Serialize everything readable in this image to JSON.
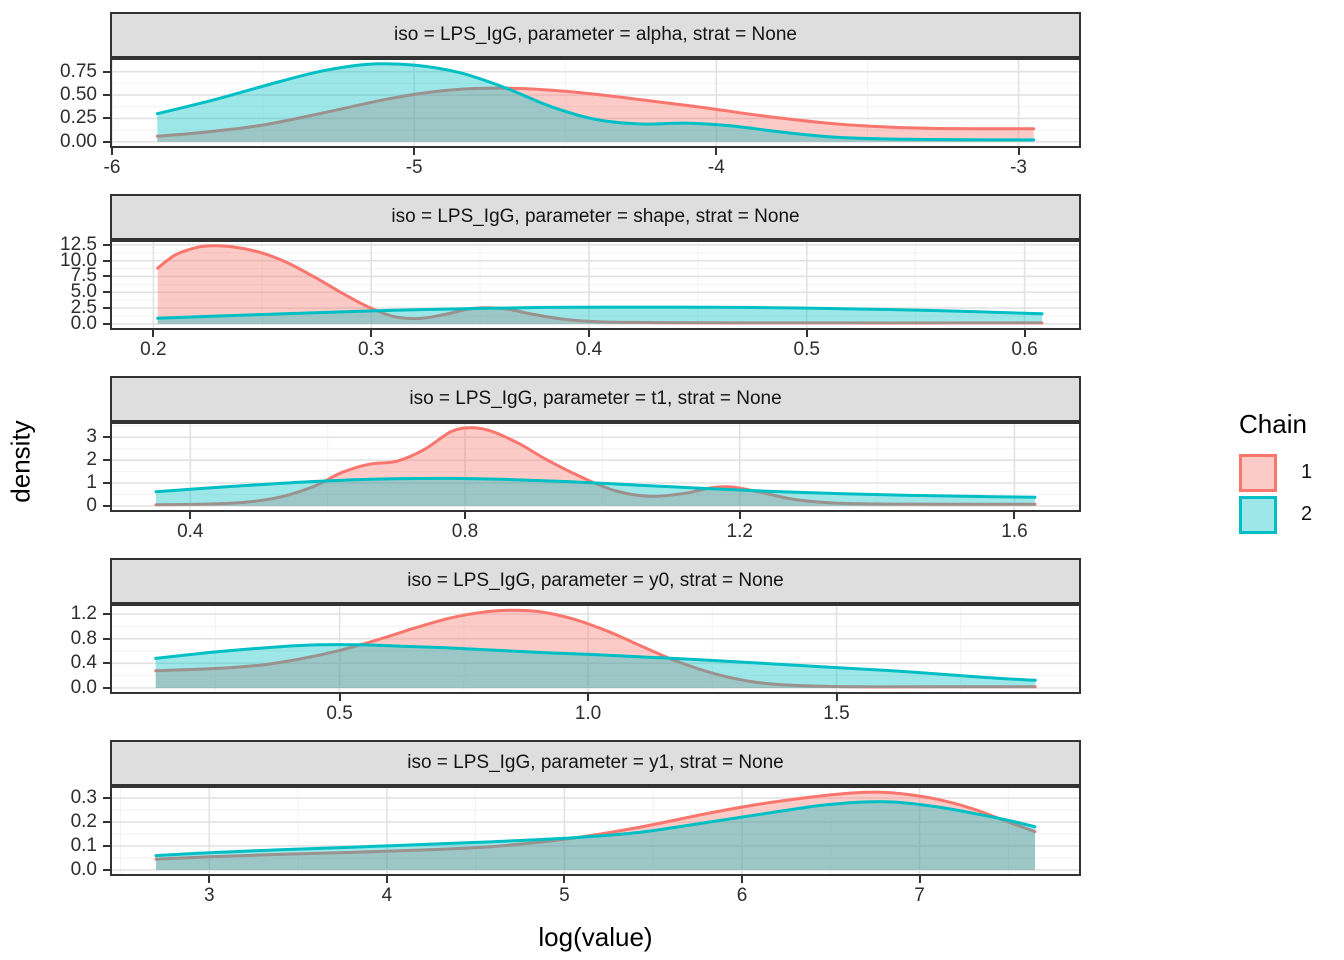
{
  "figure": {
    "ylabel": "density",
    "xlabel": "log(value)",
    "legend": {
      "title": "Chain",
      "entries": [
        {
          "label": "1",
          "color": "#F8766D"
        },
        {
          "label": "2",
          "color": "#00BFC4"
        }
      ]
    }
  },
  "style": {
    "strip_fill": "#DEDEDE",
    "panel_border": "#333333",
    "grid_major": "#E2E2E2",
    "grid_minor": "#F2F2F2",
    "chain1_color": "#F8766D",
    "chain2_color": "#00BFC4",
    "fill_opacity": 0.38
  },
  "chart_data": [
    {
      "type": "area",
      "param": "alpha",
      "title": "iso = LPS_IgG, parameter = alpha, strat = None",
      "xlim": [
        -6.0,
        -2.8
      ],
      "ylim": [
        -0.045,
        0.875
      ],
      "xticks": [
        -6,
        -5,
        -4,
        -3
      ],
      "xtick_labels": [
        "-6",
        "-5",
        "-4",
        "-3"
      ],
      "yticks": [
        0,
        0.25,
        0.5,
        0.75
      ],
      "ytick_labels": [
        "0.00",
        "0.25",
        "0.50",
        "0.75"
      ],
      "series": [
        {
          "name": "1",
          "color": "#F8766D",
          "x": [
            -5.85,
            -5.7,
            -5.5,
            -5.3,
            -5.1,
            -4.95,
            -4.8,
            -4.65,
            -4.5,
            -4.35,
            -4.2,
            -4.05,
            -3.9,
            -3.75,
            -3.6,
            -3.45,
            -3.3,
            -3.15,
            -2.95
          ],
          "y": [
            0.06,
            0.1,
            0.18,
            0.31,
            0.45,
            0.53,
            0.57,
            0.57,
            0.54,
            0.49,
            0.43,
            0.37,
            0.3,
            0.24,
            0.19,
            0.16,
            0.145,
            0.14,
            0.14
          ]
        },
        {
          "name": "2",
          "color": "#00BFC4",
          "x": [
            -5.85,
            -5.65,
            -5.45,
            -5.3,
            -5.15,
            -5.0,
            -4.85,
            -4.7,
            -4.55,
            -4.4,
            -4.25,
            -4.1,
            -3.95,
            -3.8,
            -3.65,
            -3.5,
            -3.3,
            -3.1,
            -2.95
          ],
          "y": [
            0.3,
            0.46,
            0.64,
            0.76,
            0.83,
            0.82,
            0.74,
            0.58,
            0.38,
            0.24,
            0.19,
            0.2,
            0.17,
            0.11,
            0.06,
            0.035,
            0.025,
            0.02,
            0.02
          ]
        }
      ]
    },
    {
      "type": "area",
      "param": "shape",
      "title": "iso = LPS_IgG, parameter = shape, strat = None",
      "xlim": [
        0.181,
        0.625
      ],
      "ylim": [
        -0.65,
        12.95
      ],
      "xticks": [
        0.2,
        0.3,
        0.4,
        0.5,
        0.6
      ],
      "xtick_labels": [
        "0.2",
        "0.3",
        "0.4",
        "0.5",
        "0.6"
      ],
      "yticks": [
        0,
        2.5,
        5,
        7.5,
        10,
        12.5
      ],
      "ytick_labels": [
        "0.0",
        "2.5",
        "5.0",
        "7.5",
        "10.0",
        "12.5"
      ],
      "series": [
        {
          "name": "1",
          "color": "#F8766D",
          "x": [
            0.202,
            0.21,
            0.22,
            0.228,
            0.238,
            0.25,
            0.262,
            0.274,
            0.286,
            0.298,
            0.31,
            0.322,
            0.334,
            0.344,
            0.352,
            0.362,
            0.374,
            0.388,
            0.404,
            0.43,
            0.47,
            0.52,
            0.57,
            0.608
          ],
          "y": [
            8.8,
            10.9,
            12.1,
            12.35,
            12.1,
            11.2,
            9.6,
            7.4,
            5.0,
            2.8,
            1.2,
            0.85,
            1.5,
            2.3,
            2.55,
            2.35,
            1.55,
            0.75,
            0.35,
            0.2,
            0.16,
            0.15,
            0.15,
            0.15
          ]
        },
        {
          "name": "2",
          "color": "#00BFC4",
          "x": [
            0.202,
            0.23,
            0.26,
            0.29,
            0.32,
            0.35,
            0.38,
            0.41,
            0.44,
            0.47,
            0.5,
            0.53,
            0.56,
            0.585,
            0.608
          ],
          "y": [
            0.9,
            1.25,
            1.6,
            1.95,
            2.25,
            2.45,
            2.6,
            2.65,
            2.65,
            2.6,
            2.5,
            2.32,
            2.1,
            1.85,
            1.6
          ]
        }
      ]
    },
    {
      "type": "area",
      "param": "t1",
      "title": "iso = LPS_IgG, parameter = t1, strat = None",
      "xlim": [
        0.286,
        1.694
      ],
      "ylim": [
        -0.18,
        3.58
      ],
      "xticks": [
        0.4,
        0.8,
        1.2,
        1.6
      ],
      "xtick_labels": [
        "0.4",
        "0.8",
        "1.2",
        "1.6"
      ],
      "yticks": [
        0,
        1,
        2,
        3
      ],
      "ytick_labels": [
        "0",
        "1",
        "2",
        "3"
      ],
      "series": [
        {
          "name": "1",
          "color": "#F8766D",
          "x": [
            0.35,
            0.42,
            0.48,
            0.53,
            0.58,
            0.62,
            0.66,
            0.7,
            0.74,
            0.78,
            0.81,
            0.84,
            0.88,
            0.92,
            0.97,
            1.02,
            1.07,
            1.12,
            1.16,
            1.19,
            1.23,
            1.28,
            1.34,
            1.42,
            1.52,
            1.63
          ],
          "y": [
            0.05,
            0.08,
            0.16,
            0.38,
            0.85,
            1.45,
            1.82,
            1.95,
            2.45,
            3.25,
            3.42,
            3.25,
            2.7,
            2.0,
            1.25,
            0.65,
            0.42,
            0.55,
            0.8,
            0.82,
            0.6,
            0.28,
            0.12,
            0.08,
            0.07,
            0.07
          ]
        },
        {
          "name": "2",
          "color": "#00BFC4",
          "x": [
            0.35,
            0.45,
            0.55,
            0.63,
            0.7,
            0.78,
            0.86,
            0.95,
            1.05,
            1.15,
            1.25,
            1.35,
            1.45,
            1.55,
            1.63
          ],
          "y": [
            0.62,
            0.83,
            1.02,
            1.13,
            1.19,
            1.2,
            1.16,
            1.06,
            0.91,
            0.76,
            0.63,
            0.53,
            0.46,
            0.41,
            0.38
          ]
        }
      ]
    },
    {
      "type": "area",
      "param": "y0",
      "title": "iso = LPS_IgG, parameter = y0, strat = None",
      "xlim": [
        0.042,
        1.988
      ],
      "ylim": [
        -0.065,
        1.33
      ],
      "xticks": [
        0.5,
        1.0,
        1.5
      ],
      "xtick_labels": [
        "0.5",
        "1.0",
        "1.5"
      ],
      "yticks": [
        0,
        0.4,
        0.8,
        1.2
      ],
      "ytick_labels": [
        "0.0",
        "0.4",
        "0.8",
        "1.2"
      ],
      "series": [
        {
          "name": "1",
          "color": "#F8766D",
          "x": [
            0.13,
            0.2,
            0.28,
            0.35,
            0.42,
            0.5,
            0.58,
            0.65,
            0.72,
            0.78,
            0.84,
            0.9,
            0.97,
            1.04,
            1.11,
            1.18,
            1.26,
            1.34,
            1.42,
            1.55,
            1.7,
            1.9
          ],
          "y": [
            0.28,
            0.3,
            0.33,
            0.38,
            0.47,
            0.61,
            0.79,
            0.97,
            1.13,
            1.22,
            1.26,
            1.24,
            1.12,
            0.92,
            0.67,
            0.43,
            0.22,
            0.09,
            0.04,
            0.02,
            0.02,
            0.02
          ]
        },
        {
          "name": "2",
          "color": "#00BFC4",
          "x": [
            0.13,
            0.22,
            0.3,
            0.38,
            0.46,
            0.54,
            0.62,
            0.72,
            0.82,
            0.92,
            1.02,
            1.12,
            1.22,
            1.35,
            1.5,
            1.65,
            1.8,
            1.9
          ],
          "y": [
            0.48,
            0.56,
            0.62,
            0.67,
            0.7,
            0.7,
            0.68,
            0.65,
            0.61,
            0.57,
            0.54,
            0.5,
            0.46,
            0.4,
            0.33,
            0.26,
            0.17,
            0.125
          ]
        }
      ]
    },
    {
      "type": "area",
      "param": "y1",
      "title": "iso = LPS_IgG, parameter = y1, strat = None",
      "xlim": [
        2.452,
        7.898
      ],
      "ylim": [
        -0.017,
        0.342
      ],
      "xticks": [
        3,
        4,
        5,
        6,
        7
      ],
      "xtick_labels": [
        "3",
        "4",
        "5",
        "6",
        "7"
      ],
      "yticks": [
        0,
        0.1,
        0.2,
        0.3
      ],
      "ytick_labels": [
        "0.0",
        "0.1",
        "0.2",
        "0.3"
      ],
      "series": [
        {
          "name": "1",
          "color": "#F8766D",
          "x": [
            2.7,
            3.0,
            3.4,
            3.8,
            4.2,
            4.6,
            5.0,
            5.4,
            5.8,
            6.1,
            6.4,
            6.6,
            6.75,
            6.9,
            7.1,
            7.3,
            7.5,
            7.65
          ],
          "y": [
            0.045,
            0.055,
            0.065,
            0.073,
            0.083,
            0.098,
            0.128,
            0.175,
            0.235,
            0.275,
            0.305,
            0.32,
            0.325,
            0.318,
            0.295,
            0.255,
            0.2,
            0.16
          ]
        },
        {
          "name": "2",
          "color": "#00BFC4",
          "x": [
            2.7,
            3.0,
            3.4,
            3.8,
            4.2,
            4.6,
            5.0,
            5.4,
            5.8,
            6.1,
            6.4,
            6.6,
            6.75,
            6.9,
            7.1,
            7.3,
            7.5,
            7.65
          ],
          "y": [
            0.06,
            0.072,
            0.084,
            0.095,
            0.106,
            0.118,
            0.132,
            0.155,
            0.198,
            0.232,
            0.265,
            0.28,
            0.285,
            0.281,
            0.263,
            0.237,
            0.207,
            0.18
          ]
        }
      ]
    }
  ]
}
